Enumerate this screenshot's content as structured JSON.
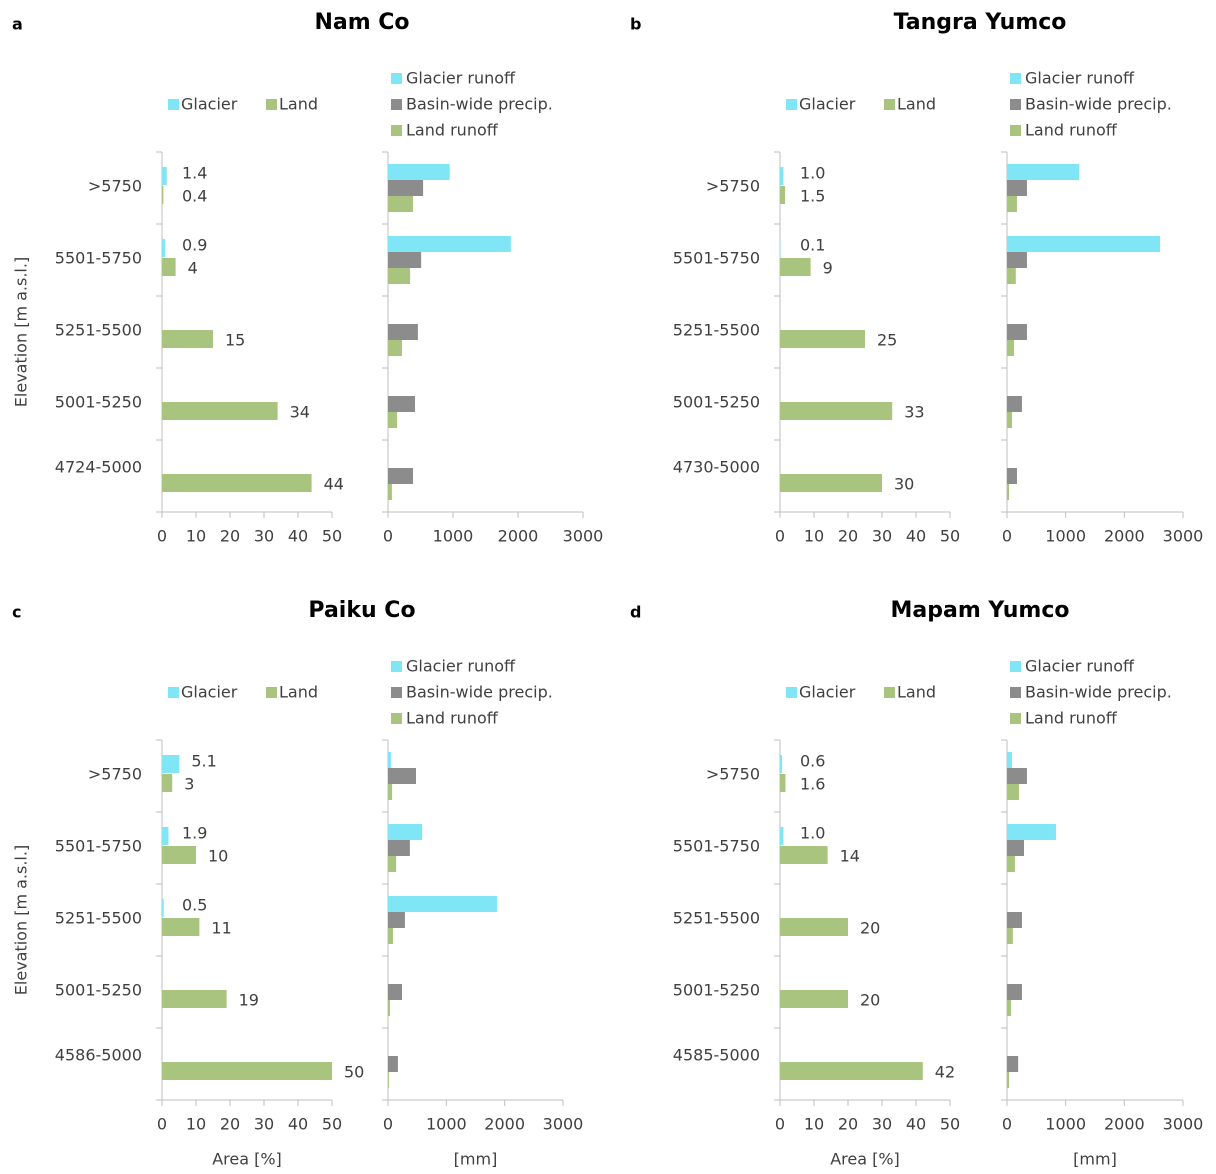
{
  "chart_data": [
    {
      "type": "bar",
      "panel_label": "a",
      "title": "Nam Co",
      "ylabel": "Elevation [m a.s.l.]",
      "categories": [
        ">5750",
        "5501-5750",
        "5251-5500",
        "5001-5250",
        "4724-5000"
      ],
      "series": [
        {
          "name": "Glacier",
          "color": "#80e6f5",
          "values": [
            1.4,
            0.9,
            null,
            null,
            null
          ]
        },
        {
          "name": "Land",
          "color": "#a9c47f",
          "values": [
            0.4,
            4,
            15,
            34,
            44
          ]
        }
      ],
      "xlim": [
        0,
        50
      ],
      "xticks": [
        0,
        10,
        20,
        30,
        40,
        50
      ]
    },
    {
      "type": "bar",
      "series": [
        {
          "name": "Glacier runoff",
          "color": "#80e6f5",
          "values": [
            950,
            1890,
            null,
            null,
            null
          ]
        },
        {
          "name": "Basin-wide precip.",
          "color": "#8c8c8c",
          "values": [
            540,
            510,
            460,
            415,
            385
          ]
        },
        {
          "name": "Land runoff",
          "color": "#a9c47f",
          "values": [
            385,
            340,
            215,
            140,
            60
          ]
        }
      ],
      "xlim": [
        0,
        3000
      ],
      "xticks": [
        0,
        1000,
        2000,
        3000
      ]
    },
    {
      "type": "bar",
      "panel_label": "b",
      "title": "Tangra Yumco",
      "categories": [
        ">5750",
        "5501-5750",
        "5251-5500",
        "5001-5250",
        "4730-5000"
      ],
      "series": [
        {
          "name": "Glacier",
          "color": "#80e6f5",
          "values": [
            1,
            0.1,
            null,
            null,
            null
          ],
          "value_labels": [
            "1.0",
            "0.1",
            null,
            null,
            null
          ]
        },
        {
          "name": "Land",
          "color": "#a9c47f",
          "values": [
            1.5,
            9,
            25,
            33,
            30
          ]
        }
      ],
      "xlim": [
        0,
        50
      ],
      "xticks": [
        0,
        10,
        20,
        30,
        40,
        50
      ]
    },
    {
      "type": "bar",
      "series": [
        {
          "name": "Glacier runoff",
          "color": "#80e6f5",
          "values": [
            1230,
            2610,
            null,
            null,
            null
          ]
        },
        {
          "name": "Basin-wide precip.",
          "color": "#8c8c8c",
          "values": [
            340,
            340,
            340,
            255,
            170
          ]
        },
        {
          "name": "Land runoff",
          "color": "#a9c47f",
          "values": [
            170,
            150,
            120,
            85,
            35
          ]
        }
      ],
      "xlim": [
        0,
        3000
      ],
      "xticks": [
        0,
        1000,
        2000,
        3000
      ]
    },
    {
      "type": "bar",
      "panel_label": "c",
      "title": "Paiku Co",
      "ylabel": "Elevation [m a.s.l.]",
      "xlabel": "Area [%]",
      "categories": [
        ">5750",
        "5501-5750",
        "5251-5500",
        "5001-5250",
        "4586-5000"
      ],
      "series": [
        {
          "name": "Glacier",
          "color": "#80e6f5",
          "values": [
            5.1,
            1.9,
            0.5,
            null,
            null
          ]
        },
        {
          "name": "Land",
          "color": "#a9c47f",
          "values": [
            3,
            10,
            11,
            19,
            50
          ]
        }
      ],
      "xlim": [
        0,
        50
      ],
      "xticks": [
        0,
        10,
        20,
        30,
        40,
        50
      ]
    },
    {
      "type": "bar",
      "xlabel": "[mm]",
      "series": [
        {
          "name": "Glacier runoff",
          "color": "#80e6f5",
          "values": [
            50,
            585,
            1870,
            null,
            null
          ]
        },
        {
          "name": "Basin-wide precip.",
          "color": "#8c8c8c",
          "values": [
            480,
            375,
            290,
            240,
            170
          ]
        },
        {
          "name": "Land runoff",
          "color": "#a9c47f",
          "values": [
            70,
            140,
            85,
            35,
            15
          ]
        }
      ],
      "xlim": [
        0,
        3000
      ],
      "xticks": [
        0,
        1000,
        2000,
        3000
      ]
    },
    {
      "type": "bar",
      "panel_label": "d",
      "title": "Mapam Yumco",
      "xlabel": "Area [%]",
      "categories": [
        ">5750",
        "5501-5750",
        "5251-5500",
        "5001-5250",
        "4585-5000"
      ],
      "series": [
        {
          "name": "Glacier",
          "color": "#80e6f5",
          "values": [
            0.6,
            1,
            null,
            null,
            null
          ],
          "value_labels": [
            "0.6",
            "1.0",
            null,
            null,
            null
          ]
        },
        {
          "name": "Land",
          "color": "#a9c47f",
          "values": [
            1.6,
            14,
            20,
            20,
            42
          ]
        }
      ],
      "xlim": [
        0,
        50
      ],
      "xticks": [
        0,
        10,
        20,
        30,
        40,
        50
      ]
    },
    {
      "type": "bar",
      "xlabel": "[mm]",
      "series": [
        {
          "name": "Glacier runoff",
          "color": "#80e6f5",
          "values": [
            85,
            835,
            null,
            null,
            null
          ]
        },
        {
          "name": "Basin-wide precip.",
          "color": "#8c8c8c",
          "values": [
            340,
            290,
            255,
            255,
            190
          ]
        },
        {
          "name": "Land runoff",
          "color": "#a9c47f",
          "values": [
            205,
            135,
            100,
            70,
            35
          ]
        }
      ],
      "xlim": [
        0,
        3000
      ],
      "xticks": [
        0,
        1000,
        2000,
        3000
      ]
    }
  ]
}
